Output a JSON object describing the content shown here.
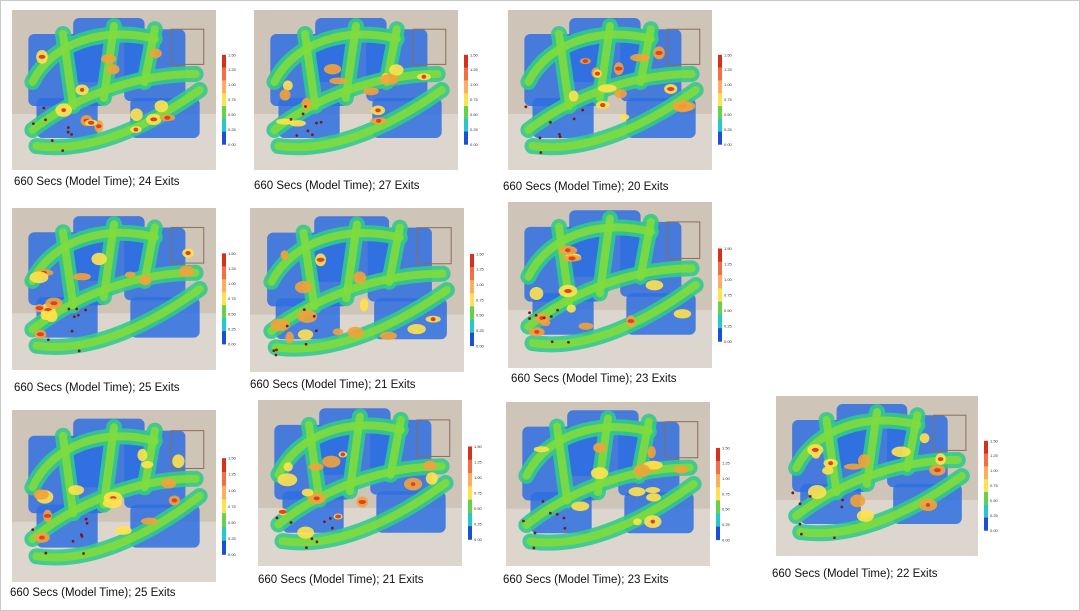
{
  "colorbar": {
    "ticks": [
      "1.50",
      "1.25",
      "1.00",
      "0.75",
      "0.50",
      "0.25",
      "0.00"
    ],
    "stops": [
      "#d7301f",
      "#f46d43",
      "#fdae61",
      "#ffe24d",
      "#66d24a",
      "#25c9c9",
      "#1a4fd6"
    ]
  },
  "panels": [
    {
      "caption": "660 Secs (Model Time); 24 Exits"
    },
    {
      "caption": "660 Secs (Model Time); 27 Exits"
    },
    {
      "caption": "660 Secs (Model Time); 20 Exits"
    },
    {
      "caption": "660 Secs (Model Time); 25 Exits"
    },
    {
      "caption": "660 Secs (Model Time); 21 Exits"
    },
    {
      "caption": "660 Secs (Model Time); 23 Exits"
    },
    {
      "caption": "660 Secs (Model Time); 25 Exits"
    },
    {
      "caption": "660 Secs (Model Time); 21 Exits"
    },
    {
      "caption": "660 Secs (Model Time); 23 Exits"
    },
    {
      "caption": "660 Secs (Model Time); 22 Exits"
    }
  ]
}
